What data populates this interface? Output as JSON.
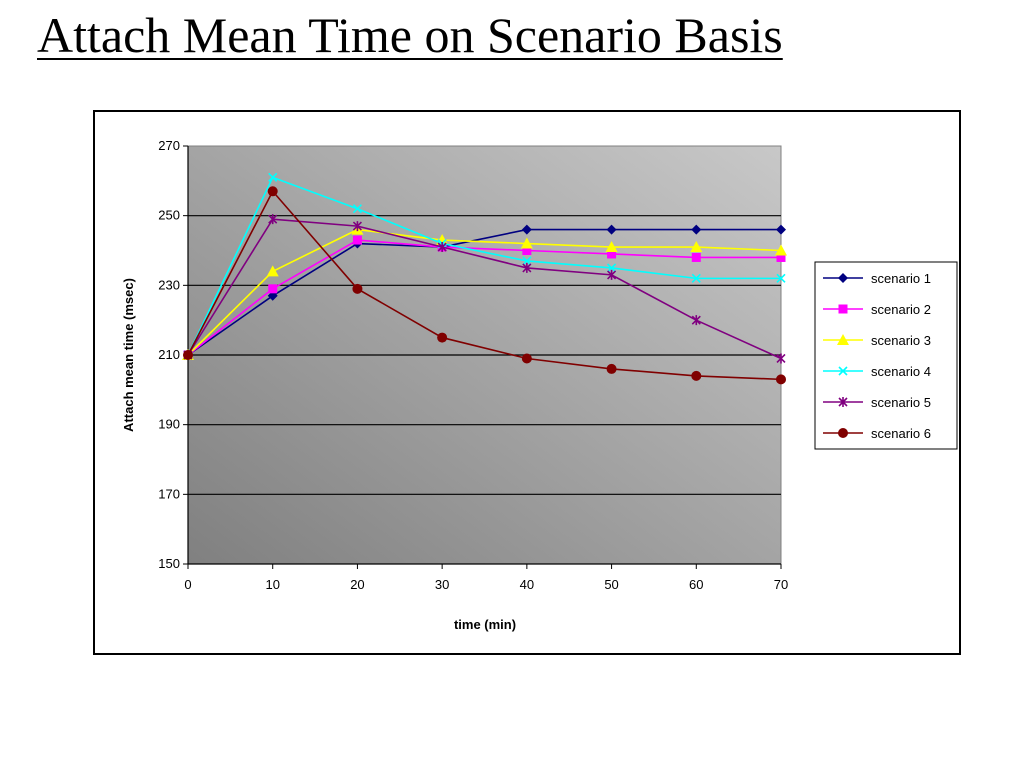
{
  "slide": {
    "title": "Attach Mean Time on Scenario Basis"
  },
  "chart_data": {
    "type": "line",
    "title": "",
    "xlabel": "time (min)",
    "ylabel": "Attach mean time (msec)",
    "x": [
      0,
      10,
      20,
      30,
      40,
      50,
      60,
      70
    ],
    "xlim": [
      0,
      70
    ],
    "ylim": [
      150,
      270
    ],
    "xticks": [
      "0",
      "10",
      "20",
      "30",
      "40",
      "50",
      "60",
      "70"
    ],
    "yticks": [
      "150",
      "170",
      "190",
      "210",
      "230",
      "250",
      "270"
    ],
    "grid": "horizontal",
    "legend": "right",
    "plot_background": "gradient gray",
    "series": [
      {
        "name": "scenario 1",
        "color": "#000080",
        "marker": "diamond",
        "values": [
          210,
          227,
          242,
          241,
          246,
          246,
          246,
          246
        ]
      },
      {
        "name": "scenario 2",
        "color": "#ff00ff",
        "marker": "square",
        "values": [
          210,
          229,
          243,
          241,
          240,
          239,
          238,
          238
        ]
      },
      {
        "name": "scenario 3",
        "color": "#ffff00",
        "marker": "triangle",
        "values": [
          210,
          234,
          246,
          243,
          242,
          241,
          241,
          240
        ]
      },
      {
        "name": "scenario 4",
        "color": "#00ffff",
        "marker": "x",
        "values": [
          210,
          261,
          252,
          242,
          237,
          235,
          232,
          232
        ]
      },
      {
        "name": "scenario 5",
        "color": "#800080",
        "marker": "star",
        "values": [
          210,
          249,
          247,
          241,
          235,
          233,
          220,
          209
        ]
      },
      {
        "name": "scenario 6",
        "color": "#800000",
        "marker": "circle",
        "values": [
          210,
          257,
          229,
          215,
          209,
          206,
          204,
          203
        ]
      }
    ]
  }
}
